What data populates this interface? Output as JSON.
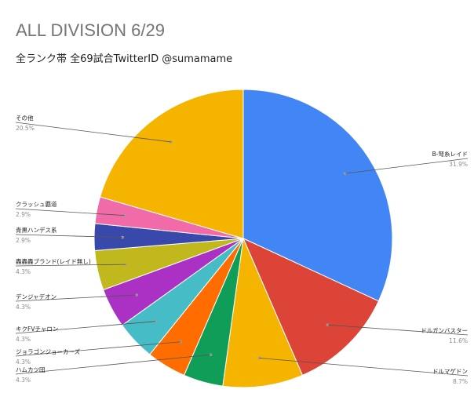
{
  "chart_data": {
    "type": "pie",
    "title": "ALL DIVISION 6/29",
    "subtitle": "全ランク帯 全69試合TwitterID @sumamame",
    "slices": [
      {
        "label": "B-弩糸レイド",
        "percent_label": "31.9%",
        "value": 31.9,
        "color": "#4285f4"
      },
      {
        "label": "ドルガンバスター",
        "percent_label": "11.6%",
        "value": 11.6,
        "color": "#db4437"
      },
      {
        "label": "ドルマゲドン",
        "percent_label": "8.7%",
        "value": 8.7,
        "color": "#f4b400"
      },
      {
        "label": "ハムカツ団",
        "percent_label": "4.3%",
        "value": 4.3,
        "color": "#0f9d58"
      },
      {
        "label": "ジョラゴンジョーカーズ",
        "percent_label": "4.3%",
        "value": 4.3,
        "color": "#ff6d00"
      },
      {
        "label": "キクFVチャロン",
        "percent_label": "4.3%",
        "value": 4.3,
        "color": "#46bdc6"
      },
      {
        "label": "デンジャデオン",
        "percent_label": "4.3%",
        "value": 4.3,
        "color": "#ab30c4"
      },
      {
        "label": "轟轟轟ブランド(レイド無し)",
        "percent_label": "4.3%",
        "value": 4.3,
        "color": "#c1b81e"
      },
      {
        "label": "青黒ハンデス系",
        "percent_label": "2.9%",
        "value": 2.9,
        "color": "#3949ab"
      },
      {
        "label": "クラッシュ覇道",
        "percent_label": "2.9%",
        "value": 2.9,
        "color": "#f06ba8"
      },
      {
        "label": "その他",
        "percent_label": "20.5%",
        "value": 20.5,
        "color": "#f4b400"
      }
    ]
  }
}
